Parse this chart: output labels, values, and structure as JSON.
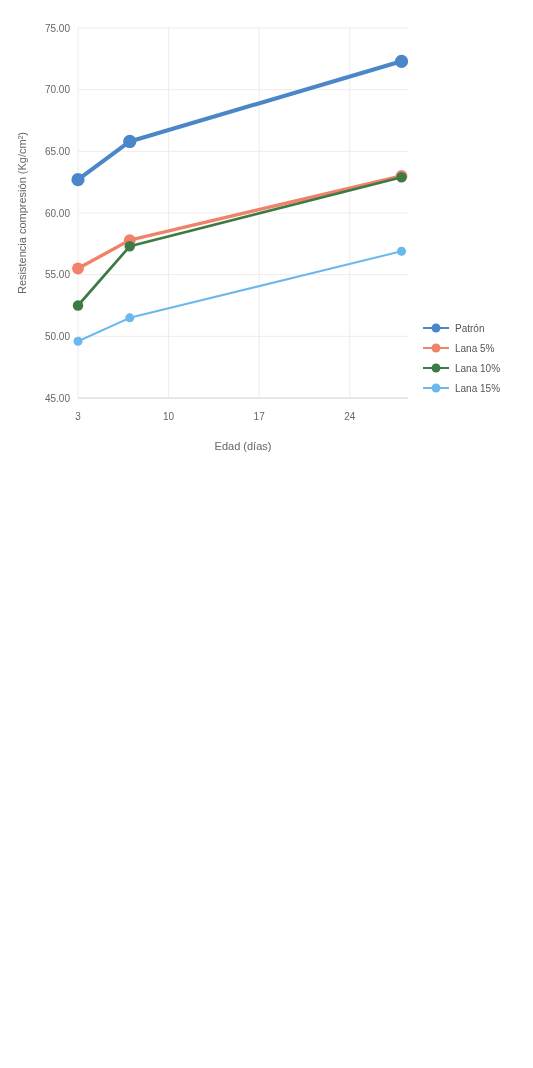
{
  "chart_data": {
    "type": "line",
    "xlabel": "Edad (días)",
    "ylabel": "Resistencia compresión (Kg/cm²)",
    "x": [
      3,
      7,
      28
    ],
    "xlim": [
      3,
      28.5
    ],
    "xticks": [
      3,
      10,
      17,
      24
    ],
    "ylim": [
      45,
      75
    ],
    "yticks": [
      {
        "value": 45,
        "label": "45.00"
      },
      {
        "value": 50,
        "label": "50.00"
      },
      {
        "value": 55,
        "label": "55.00"
      },
      {
        "value": 60,
        "label": "60.00"
      },
      {
        "value": 65,
        "label": "65.00"
      },
      {
        "value": 70,
        "label": "70.00"
      },
      {
        "value": 75,
        "label": "75.00"
      }
    ],
    "grid": true,
    "legend": "bottom right",
    "marker": "circle",
    "line_style": "solid",
    "series": [
      {
        "name": "Patrón",
        "color": "#4a86c8",
        "values": [
          62.7,
          65.8,
          72.3
        ]
      },
      {
        "name": "Lana 5%",
        "color": "#f0826a",
        "values": [
          55.5,
          57.8,
          63.0
        ]
      },
      {
        "name": "Lana 10%",
        "color": "#3e7a45",
        "values": [
          52.5,
          57.3,
          62.9
        ]
      },
      {
        "name": "Lana 15%",
        "color": "#6ab8ee",
        "values": [
          49.6,
          51.5,
          56.9
        ]
      }
    ]
  }
}
